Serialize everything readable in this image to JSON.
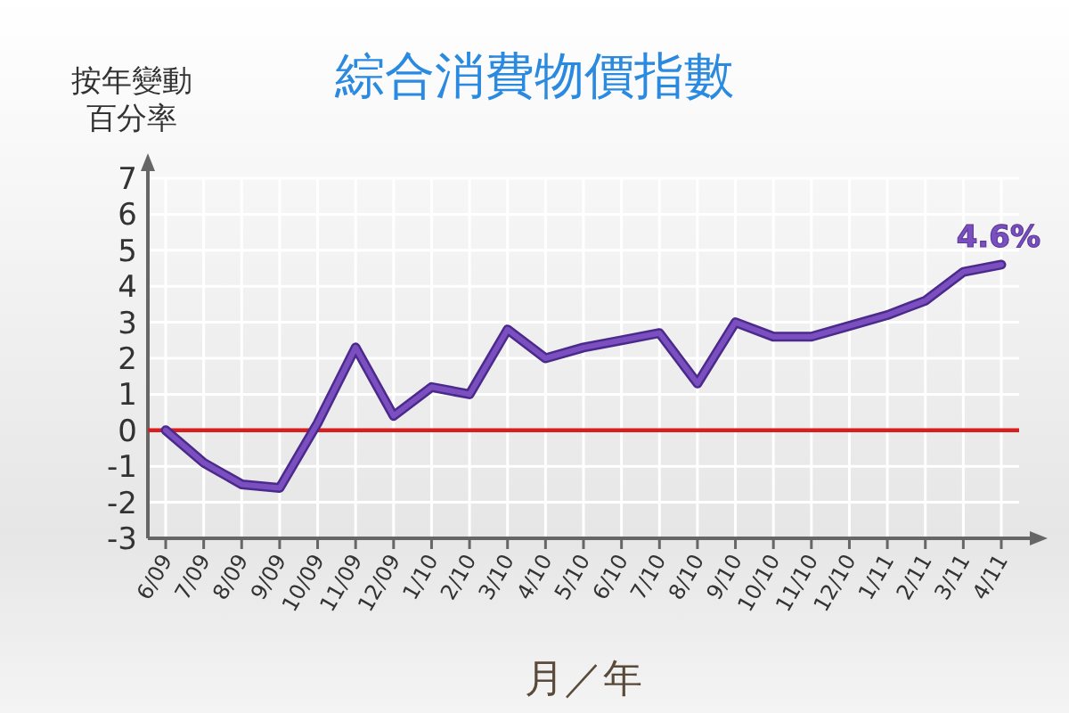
{
  "chart_data": {
    "type": "line",
    "title": "綜合消費物價指數",
    "ylabel": "按年變動百分率",
    "xlabel": "月／年",
    "categories": [
      "6/09",
      "7/09",
      "8/09",
      "9/09",
      "10/09",
      "11/09",
      "12/09",
      "1/10",
      "2/10",
      "3/10",
      "4/10",
      "5/10",
      "6/10",
      "7/10",
      "8/10",
      "9/10",
      "10/10",
      "11/10",
      "12/10",
      "1/11",
      "2/11",
      "3/11",
      "4/11"
    ],
    "series": [
      {
        "color": "#7b4fc0",
        "values": [
          0,
          -0.9,
          -1.5,
          -1.6,
          0.2,
          2.3,
          0.4,
          1.2,
          1.0,
          2.8,
          2.0,
          2.3,
          2.5,
          2.7,
          1.3,
          3.0,
          2.6,
          2.6,
          2.9,
          3.2,
          3.6,
          4.4,
          4.6
        ],
        "value_labels": [
          null,
          null,
          null,
          null,
          null,
          null,
          null,
          null,
          null,
          null,
          null,
          null,
          null,
          null,
          null,
          null,
          null,
          null,
          null,
          null,
          null,
          null,
          "4.6%"
        ]
      }
    ],
    "ylim": [
      -3,
      7
    ],
    "yticks": [
      -3,
      -2,
      -1,
      0,
      1,
      2,
      3,
      4,
      5,
      6,
      7
    ],
    "grid": true,
    "ref_lines": [
      {
        "axis": "y",
        "value": 0,
        "color": "#d81e1e"
      }
    ]
  }
}
